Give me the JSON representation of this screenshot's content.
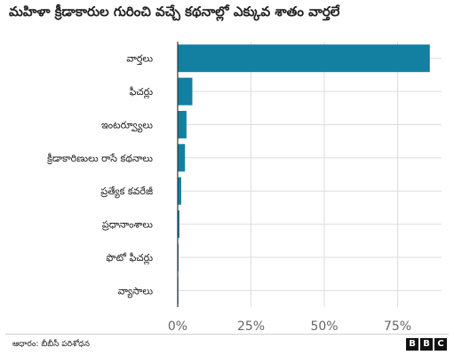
{
  "title": "మహిళా క్రీడాకారుల గురించి వచ్చే కథనాల్లో ఎక్కువ శాతం వార్తలే",
  "source": "ఆధారం: బీబీసీ పరిశోధన",
  "logo": [
    "B",
    "B",
    "C"
  ],
  "colors": {
    "bar": "#1380A1",
    "grid": "#dddddd",
    "axis": "#333333",
    "tick_text": "#666666"
  },
  "chart_data": {
    "type": "bar",
    "orientation": "horizontal",
    "categories": [
      "వార్తలు",
      "ఫీచర్లు",
      "ఇంటర్వ్యూలు",
      "క్రీడాకారిణులు రాసే కథనాలు",
      "ప్రత్యేక కవరేజీ",
      "ప్రధానాంశాలు",
      "ఫొటో ఫీచర్లు",
      "వ్యాసాలు"
    ],
    "values": [
      86,
      5,
      3,
      2.5,
      1.2,
      0.6,
      0.3,
      0.2
    ],
    "x_ticks": [
      "0%",
      "25%",
      "50%",
      "75%"
    ],
    "x_tick_values": [
      0,
      25,
      50,
      75
    ],
    "xlim": [
      0,
      90
    ],
    "grid": true,
    "xlabel": "",
    "ylabel": ""
  }
}
